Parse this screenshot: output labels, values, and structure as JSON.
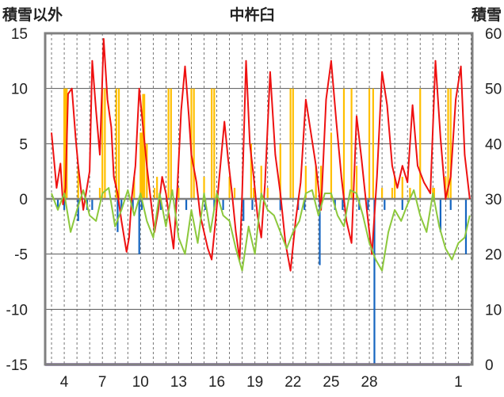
{
  "chart_data": {
    "type": "line",
    "title": "中杵臼",
    "left_axis_label": "積雪以外",
    "right_axis_label": "積雪",
    "left_ylim": [
      -15,
      15
    ],
    "left_yticks": [
      15,
      10,
      5,
      0,
      -5,
      -10,
      -15
    ],
    "right_ylim": [
      0,
      60
    ],
    "right_yticks": [
      60,
      50,
      40,
      30,
      20,
      10,
      0
    ],
    "xlim": [
      2.5,
      2.1
    ],
    "x_tick_values": [
      4,
      7,
      10,
      13,
      16,
      19,
      22,
      25,
      28,
      1
    ],
    "x_tick_labels": [
      "4",
      "7",
      "10",
      "13",
      "16",
      "19",
      "22",
      "25",
      "28",
      "1"
    ],
    "grid": true,
    "colors": {
      "red": "#ee1111",
      "green": "#8cc83c",
      "orange": "#ffbf00",
      "blue": "#1565c0",
      "purple": "#6a3aa0",
      "zero_line": "#808080",
      "frame": "#808080",
      "grid": "#555555"
    },
    "series": [
      {
        "color": "red",
        "axis": "left",
        "x": [
          3.0,
          3.2,
          3.4,
          3.7,
          3.9,
          4.1,
          4.3,
          4.6,
          4.9,
          5.1,
          5.5,
          6.0,
          6.2,
          6.5,
          6.8,
          7.1,
          7.4,
          7.7,
          7.9,
          8.2,
          8.5,
          8.9,
          9.1,
          9.3,
          9.6,
          9.9,
          10.2,
          10.5,
          10.8,
          11.1,
          11.4,
          11.7,
          12.0,
          12.3,
          12.6,
          12.9,
          13.2,
          13.5,
          13.8,
          14.0,
          14.4,
          14.7,
          15.0,
          15.3,
          15.6,
          15.9,
          16.2,
          16.6,
          16.9,
          17.2,
          17.5,
          17.8,
          18.0,
          18.3,
          18.6,
          18.9,
          19.2,
          19.5,
          19.8,
          20.2,
          20.6,
          21.0,
          21.4,
          21.8,
          22.2,
          22.6,
          23.0,
          23.4,
          23.8,
          24.2,
          24.6,
          25.0,
          25.4,
          25.8,
          26.2,
          26.6,
          27.0,
          27.4,
          27.8,
          28.2,
          28.6,
          29.0,
          29.4,
          29.8,
          30.2,
          30.6,
          31.0,
          31.4,
          31.8,
          32.3,
          32.8,
          33.2,
          33.6,
          34.0,
          34.4,
          34.8,
          35.2,
          35.5,
          35.9
        ],
        "y": [
          6.0,
          3.5,
          1.0,
          3.2,
          -0.5,
          1.0,
          9.5,
          10.0,
          5.5,
          3.0,
          -1.0,
          2.5,
          12.5,
          8.0,
          4.0,
          14.5,
          9.0,
          6.5,
          2.0,
          0.5,
          -2.0,
          -4.8,
          -3.5,
          0.0,
          3.0,
          10.0,
          6.5,
          3.0,
          0.0,
          -3.0,
          -1.0,
          2.0,
          0.5,
          -2.0,
          -4.5,
          1.0,
          8.0,
          12.0,
          7.5,
          4.0,
          1.5,
          -1.5,
          -3.0,
          -4.5,
          -5.5,
          -2.0,
          2.0,
          7.0,
          3.5,
          0.5,
          -3.0,
          -5.5,
          0.5,
          12.5,
          5.0,
          2.0,
          -1.5,
          -3.5,
          1.5,
          11.5,
          4.0,
          0.5,
          -4.0,
          -6.5,
          -2.0,
          1.5,
          9.0,
          6.0,
          3.0,
          -1.0,
          9.0,
          12.5,
          7.0,
          2.0,
          -2.0,
          -4.0,
          7.5,
          3.5,
          -1.0,
          -5.0,
          2.0,
          11.5,
          8.5,
          3.0,
          1.0,
          3.0,
          1.5,
          8.5,
          3.0,
          1.5,
          0.5,
          12.5,
          5.5,
          0.0,
          2.0,
          9.0,
          12.0,
          4.0,
          0.0
        ]
      },
      {
        "color": "green",
        "axis": "left",
        "x": [
          3.0,
          3.5,
          4.0,
          4.5,
          5.0,
          5.5,
          6.0,
          6.5,
          7.0,
          7.5,
          8.0,
          8.5,
          9.0,
          9.5,
          10.0,
          10.5,
          11.0,
          11.5,
          12.0,
          12.5,
          13.0,
          13.5,
          14.0,
          14.5,
          15.0,
          15.5,
          16.0,
          16.5,
          17.0,
          17.5,
          18.0,
          18.5,
          19.0,
          19.5,
          20.0,
          20.5,
          21.0,
          21.5,
          22.0,
          22.5,
          23.0,
          23.5,
          24.0,
          24.5,
          25.0,
          25.5,
          26.0,
          26.5,
          27.0,
          27.5,
          28.0,
          28.5,
          29.0,
          29.5,
          30.0,
          30.5,
          31.0,
          31.5,
          32.0,
          32.5,
          33.0,
          33.5,
          34.0,
          34.5,
          35.0,
          35.5,
          35.9
        ],
        "y": [
          0.5,
          -1.0,
          0.5,
          -3.0,
          -1.0,
          0.8,
          -1.5,
          -2.0,
          0.5,
          1.0,
          -2.5,
          -1.0,
          0.8,
          -1.5,
          0.5,
          -2.0,
          -3.5,
          0.5,
          -2.5,
          0.8,
          -3.5,
          -5.0,
          -1.0,
          -4.0,
          0.5,
          -3.0,
          0.5,
          -1.5,
          -2.0,
          -4.5,
          -6.5,
          -2.5,
          -5.0,
          0.5,
          -1.0,
          -1.5,
          -3.0,
          -4.5,
          -3.0,
          -2.0,
          0.5,
          0.8,
          -1.5,
          0.5,
          0.5,
          -1.5,
          -2.5,
          0.8,
          0.5,
          -1.5,
          -4.0,
          -5.5,
          -6.5,
          -3.0,
          -1.0,
          -2.0,
          -0.5,
          0.8,
          -1.5,
          -3.0,
          0.5,
          -2.5,
          -4.5,
          -5.5,
          -4.0,
          -3.5,
          -1.5
        ]
      },
      {
        "color": "orange",
        "axis": "left",
        "type": "bar",
        "x": [
          4.0,
          4.1,
          4.2,
          5.1,
          6.8,
          7.0,
          7.2,
          8.1,
          8.3,
          9.5,
          10.0,
          10.1,
          10.2,
          10.3,
          10.5,
          11.1,
          11.3,
          12.2,
          12.4,
          13.0,
          14.0,
          14.2,
          15.0,
          15.6,
          15.8,
          17.0,
          17.4,
          18.7,
          18.9,
          19.5,
          20.0,
          21.0,
          21.8,
          22.0,
          23.0,
          23.8,
          24.2,
          25.0,
          26.0,
          26.6,
          27.0,
          28.0,
          28.3,
          29.0,
          29.8,
          30.0,
          30.6,
          31.2,
          32.0,
          33.0,
          33.1,
          34.0,
          34.2,
          34.4
        ],
        "y": [
          10.0,
          10.0,
          10.0,
          3.0,
          1.0,
          10.0,
          10.0,
          10.0,
          10.0,
          2.0,
          6.0,
          6.0,
          9.5,
          9.5,
          5.0,
          1.0,
          2.0,
          10.0,
          10.0,
          1.0,
          10.0,
          10.0,
          2.0,
          10.0,
          10.0,
          2.0,
          1.0,
          5.0,
          1.0,
          3.0,
          1.0,
          5.0,
          10.0,
          10.0,
          3.0,
          3.0,
          3.0,
          6.0,
          10.0,
          10.0,
          3.0,
          10.0,
          10.0,
          1.0,
          1.0,
          2.0,
          2.0,
          1.0,
          10.0,
          1.0,
          1.0,
          2.0,
          10.0,
          10.0
        ]
      },
      {
        "color": "blue",
        "axis": "left",
        "type": "bar",
        "x": [
          3.5,
          4.0,
          5.1,
          5.8,
          6.2,
          8.2,
          8.5,
          9.4,
          9.9,
          10.1,
          11.6,
          12.8,
          13.6,
          15.1,
          15.8,
          16.5,
          18.1,
          18.8,
          21.0,
          22.4,
          22.9,
          24.1,
          25.3,
          25.9,
          27.2,
          27.9,
          28.4,
          29.2,
          30.6,
          33.6,
          34.4,
          35.6
        ],
        "y": [
          -1.0,
          -1.0,
          -2.0,
          -1.0,
          -1.0,
          -3.0,
          -1.0,
          -1.0,
          -5.0,
          -1.0,
          -1.0,
          -1.0,
          -1.0,
          -1.0,
          -1.0,
          -1.0,
          -2.0,
          -1.0,
          -1.0,
          -1.0,
          -1.0,
          -6.0,
          -1.0,
          -1.0,
          -1.0,
          -1.0,
          -15.0,
          -1.0,
          -1.0,
          -3.0,
          -1.0,
          -5.0
        ]
      },
      {
        "color": "purple",
        "axis": "right",
        "x": [
          2.5,
          35.9
        ],
        "y": [
          0.0,
          0.0
        ]
      }
    ]
  }
}
